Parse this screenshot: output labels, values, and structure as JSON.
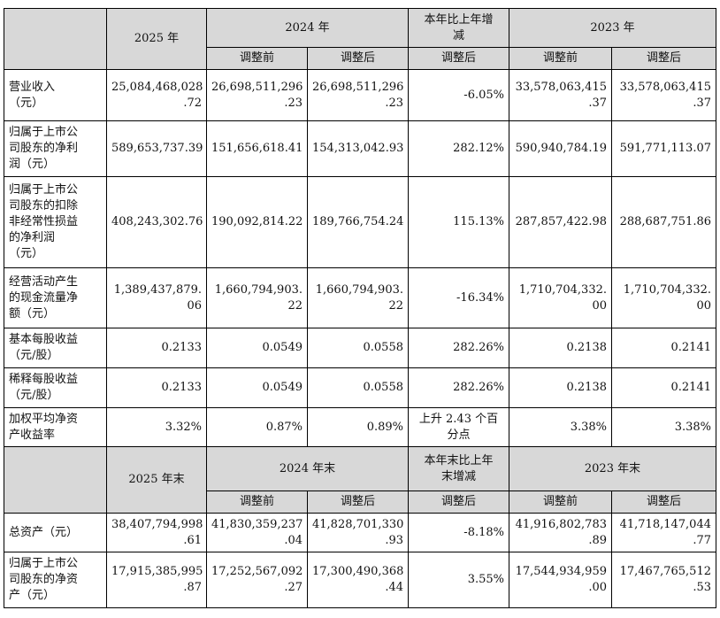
{
  "header1": {
    "blank": "",
    "y2025": "2025 年",
    "y2024": "2024 年",
    "change": "本年比上年增\n减",
    "y2023": "2023 年"
  },
  "subheader1": {
    "before": "调整前",
    "after": "调整后",
    "change_after": "调整后",
    "before_2023": "调整前",
    "after_2023": "调整后"
  },
  "rows1": [
    {
      "label": "营业收入\n（元）",
      "v2025": "25,084,468,028\n.72",
      "v2024_before": "26,698,511,296\n.23",
      "v2024_after": "26,698,511,296\n.23",
      "change": "-6.05%",
      "v2023_before": "33,578,063,415\n.37",
      "v2023_after": "33,578,063,415\n.37"
    },
    {
      "label": "归属于上市公\n司股东的净利\n润（元）",
      "v2025": "589,653,737.39",
      "v2024_before": "151,656,618.41",
      "v2024_after": "154,313,042.93",
      "change": "282.12%",
      "v2023_before": "590,940,784.19",
      "v2023_after": "591,771,113.07"
    },
    {
      "label": "归属于上市公\n司股东的扣除\n非经常性损益\n的净利润\n（元）",
      "v2025": "408,243,302.76",
      "v2024_before": "190,092,814.22",
      "v2024_after": "189,766,754.24",
      "change": "115.13%",
      "v2023_before": "287,857,422.98",
      "v2023_after": "288,687,751.86"
    },
    {
      "label": "经营活动产生\n的现金流量净\n额（元）",
      "v2025": "1,389,437,879.\n06",
      "v2024_before": "1,660,794,903.\n22",
      "v2024_after": "1,660,794,903.\n22",
      "change": "-16.34%",
      "v2023_before": "1,710,704,332.\n00",
      "v2023_after": "1,710,704,332.\n00"
    },
    {
      "label": "基本每股收益\n（元/股）",
      "v2025": "0.2133",
      "v2024_before": "0.0549",
      "v2024_after": "0.0558",
      "change": "282.26%",
      "v2023_before": "0.2138",
      "v2023_after": "0.2141"
    },
    {
      "label": "稀释每股收益\n（元/股）",
      "v2025": "0.2133",
      "v2024_before": "0.0549",
      "v2024_after": "0.0558",
      "change": "282.26%",
      "v2023_before": "0.2138",
      "v2023_after": "0.2141"
    },
    {
      "label": "加权平均净资\n产收益率",
      "v2025": "3.32%",
      "v2024_before": "0.87%",
      "v2024_after": "0.89%",
      "change": "上升 2.43 个百\n分点",
      "v2023_before": "3.38%",
      "v2023_after": "3.38%"
    }
  ],
  "header2": {
    "blank": "",
    "y2025": "2025 年末",
    "y2024": "2024 年末",
    "change": "本年末比上年\n末增减",
    "y2023": "2023 年末"
  },
  "subheader2": {
    "before": "调整前",
    "after": "调整后",
    "change_after": "调整后",
    "before_2023": "调整前",
    "after_2023": "调整后"
  },
  "rows2": [
    {
      "label": "总资产（元）",
      "v2025": "38,407,794,998\n.61",
      "v2024_before": "41,830,359,237\n.04",
      "v2024_after": "41,828,701,330\n.93",
      "change": "-8.18%",
      "v2023_before": "41,916,802,783\n.89",
      "v2023_after": "41,718,147,044\n.77"
    },
    {
      "label": "归属于上市公\n司股东的净资\n产（元）",
      "v2025": "17,915,385,995\n.87",
      "v2024_before": "17,252,567,092\n.27",
      "v2024_after": "17,300,490,368\n.44",
      "change": "3.55%",
      "v2023_before": "17,544,934,959\n.00",
      "v2023_after": "17,467,765,512\n.53"
    }
  ]
}
